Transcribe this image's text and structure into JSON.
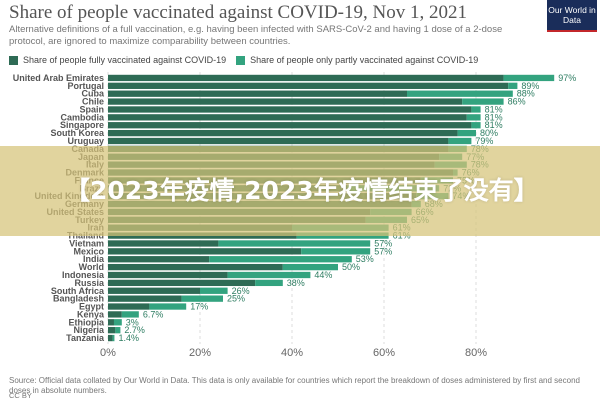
{
  "header": {
    "title": "Share of people vaccinated against COVID-19, Nov 1, 2021",
    "subtitle": "Alternative definitions of a full vaccination, e.g. having been infected with SARS-CoV-2 and having 1 dose of a 2-dose protocol, are ignored to maximize comparability between countries.",
    "logo": "Our World in Data"
  },
  "legend": {
    "full_label": "Share of people fully vaccinated against COVID-19",
    "partial_label": "Share of people only partly vaccinated against COVID-19"
  },
  "colors": {
    "full": "#2e6b55",
    "partial": "#33a37f",
    "label": "#2e7d62"
  },
  "chart_data": {
    "type": "bar",
    "orientation": "horizontal",
    "stacked": true,
    "xlim": [
      0,
      100
    ],
    "x_ticks": [
      "0%",
      "20%",
      "40%",
      "60%",
      "80%"
    ],
    "x_tick_values": [
      0,
      20,
      40,
      60,
      80
    ],
    "grid": true,
    "legend_position": "top-left",
    "categories": [
      "United Arab Emirates",
      "Portugal",
      "Cuba",
      "Chile",
      "Spain",
      "Cambodia",
      "Singapore",
      "South Korea",
      "Uruguay",
      "Canada",
      "Japan",
      "Italy",
      "Denmark",
      "France",
      "Brazil",
      "United Kingdom",
      "Germany",
      "United States",
      "Turkey",
      "Iran",
      "Thailand",
      "Vietnam",
      "Mexico",
      "India",
      "World",
      "Indonesia",
      "Russia",
      "South Africa",
      "Bangladesh",
      "Egypt",
      "Kenya",
      "Ethiopia",
      "Nigeria",
      "Tanzania"
    ],
    "series": [
      {
        "name": "Share of people fully vaccinated against COVID-19",
        "values": [
          86,
          87,
          65,
          77,
          79,
          78,
          79,
          76,
          74,
          74,
          72,
          71,
          75,
          68,
          52,
          67,
          66,
          57,
          56,
          40,
          41,
          24,
          42,
          22,
          38,
          26,
          32,
          20,
          16,
          9,
          3,
          1.3,
          1.6,
          1.0
        ]
      },
      {
        "name": "Share of people only partly vaccinated against COVID-19",
        "values": [
          11,
          2,
          23,
          9,
          2,
          3,
          2,
          4,
          5,
          4,
          5,
          7,
          1,
          7,
          20,
          7,
          2,
          9,
          9,
          21,
          20,
          33,
          15,
          31,
          12,
          18,
          6,
          6,
          9,
          8,
          3.7,
          1.7,
          1.1,
          0.4
        ]
      }
    ],
    "data_labels": [
      "97%",
      "89%",
      "88%",
      "86%",
      "81%",
      "81%",
      "81%",
      "80%",
      "79%",
      "78%",
      "77%",
      "78%",
      "76%",
      "75%",
      "72%",
      "74%",
      "68%",
      "66%",
      "65%",
      "61%",
      "61%",
      "57%",
      "57%",
      "53%",
      "50%",
      "44%",
      "38%",
      "26%",
      "25%",
      "17%",
      "6.7%",
      "3%",
      "2.7%",
      "1.4%"
    ]
  },
  "source": "Source: Official data collated by Our World in Data. This data is only available for countries which report the breakdown of doses administered by first and second doses in absolute numbers.",
  "license": "CC BY",
  "overlay_text": "【2023年疫情,2023年疫情结束了没有】"
}
